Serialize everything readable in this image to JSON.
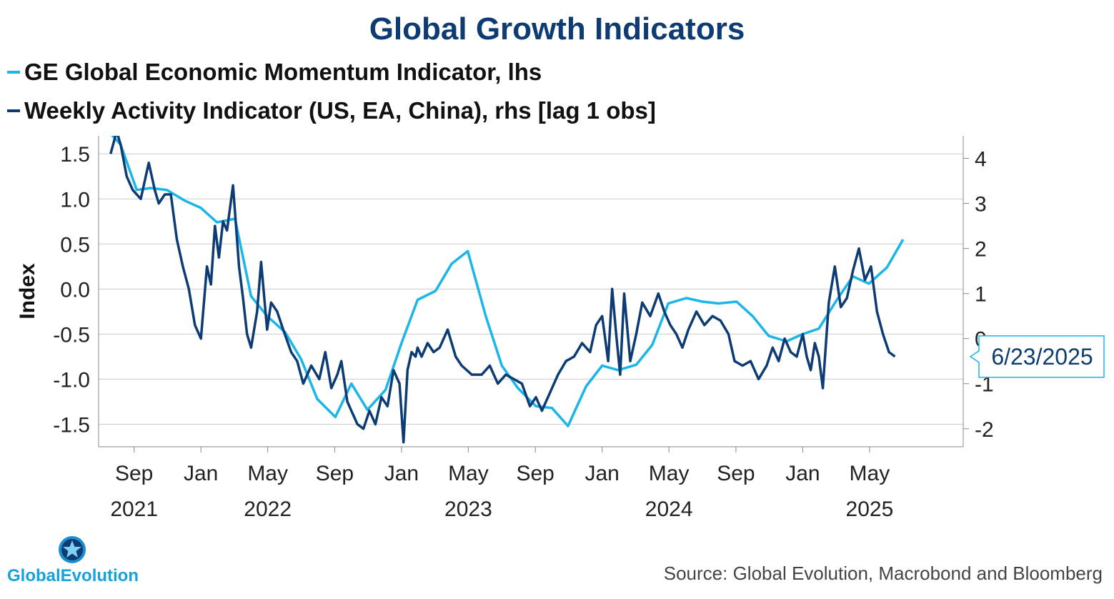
{
  "header": {
    "title": "Global Growth Indicators",
    "legend": [
      {
        "label": "GE Global Economic Momentum Indicator, lhs",
        "color": "#1ab6ea"
      },
      {
        "label": "Weekly Activity Indicator (US, EA, China), rhs [lag 1 obs]",
        "color": "#0d3b73"
      }
    ]
  },
  "footer": {
    "source": "Source: Global Evolution, Macrobond and Bloomberg",
    "logo_text": "GlobalEvolution"
  },
  "colors": {
    "momentum": "#1ab6ea",
    "weekly": "#0d3b73",
    "grid": "#cccccc",
    "callout_border": "#1ab6ea"
  },
  "chart_data": {
    "type": "line",
    "title": "Global Growth Indicators",
    "ylabel": "Index",
    "xlabel": "",
    "x_range": [
      2021.49,
      2025.8
    ],
    "left_axis": {
      "ylim": [
        -1.75,
        1.7
      ],
      "ticks": [
        1.5,
        1.0,
        0.5,
        0.0,
        -0.5,
        -1.0,
        -1.5
      ],
      "tick_labels": [
        "1.5",
        "1.0",
        "0.5",
        "0.0",
        "-0.5",
        "-1.0",
        "-1.5"
      ]
    },
    "right_axis": {
      "ylim": [
        -2.4,
        4.5
      ],
      "ticks": [
        4,
        3,
        2,
        1,
        0,
        -1,
        -2
      ],
      "tick_labels": [
        "4",
        "3",
        "2",
        "1",
        "0",
        "-1",
        "-2"
      ]
    },
    "x_ticks": [
      {
        "pos": 2021.667,
        "month": "Sep",
        "year": "2021"
      },
      {
        "pos": 2022.0,
        "month": "Jan",
        "year": ""
      },
      {
        "pos": 2022.333,
        "month": "May",
        "year": "2022"
      },
      {
        "pos": 2022.667,
        "month": "Sep",
        "year": ""
      },
      {
        "pos": 2023.0,
        "month": "Jan",
        "year": ""
      },
      {
        "pos": 2023.333,
        "month": "May",
        "year": "2023"
      },
      {
        "pos": 2023.667,
        "month": "Sep",
        "year": ""
      },
      {
        "pos": 2024.0,
        "month": "Jan",
        "year": ""
      },
      {
        "pos": 2024.333,
        "month": "May",
        "year": "2024"
      },
      {
        "pos": 2024.667,
        "month": "Sep",
        "year": ""
      },
      {
        "pos": 2025.0,
        "month": "Jan",
        "year": ""
      },
      {
        "pos": 2025.333,
        "month": "May",
        "year": "2025"
      }
    ],
    "callout": {
      "label": "6/23/2025",
      "value_rhs": -0.4
    },
    "series": [
      {
        "name": "GE Global Economic Momentum Indicator, lhs",
        "axis": "left",
        "x": [
          2021.54,
          2021.6,
          2021.68,
          2021.75,
          2021.83,
          2021.92,
          2022.0,
          2022.08,
          2022.17,
          2022.25,
          2022.33,
          2022.42,
          2022.5,
          2022.58,
          2022.67,
          2022.75,
          2022.83,
          2022.92,
          2023.0,
          2023.08,
          2023.17,
          2023.25,
          2023.33,
          2023.42,
          2023.5,
          2023.58,
          2023.67,
          2023.75,
          2023.83,
          2023.92,
          2024.0,
          2024.08,
          2024.17,
          2024.25,
          2024.33,
          2024.42,
          2024.5,
          2024.58,
          2024.67,
          2024.75,
          2024.83,
          2024.92,
          2025.0,
          2025.08,
          2025.17,
          2025.25,
          2025.33,
          2025.42,
          2025.5
        ],
        "y": [
          1.75,
          1.6,
          1.1,
          1.12,
          1.1,
          0.98,
          0.9,
          0.74,
          0.78,
          -0.08,
          -0.3,
          -0.48,
          -0.78,
          -1.22,
          -1.42,
          -1.05,
          -1.34,
          -1.12,
          -0.6,
          -0.12,
          -0.02,
          0.28,
          0.42,
          -0.3,
          -0.85,
          -1.1,
          -1.3,
          -1.32,
          -1.52,
          -1.08,
          -0.85,
          -0.9,
          -0.84,
          -0.62,
          -0.16,
          -0.1,
          -0.14,
          -0.16,
          -0.14,
          -0.3,
          -0.52,
          -0.58,
          -0.5,
          -0.44,
          -0.12,
          0.14,
          0.06,
          0.24,
          0.55
        ]
      },
      {
        "name": "Weekly Activity Indicator (US, EA, China), rhs [lag 1 obs]",
        "axis": "right",
        "x": [
          2021.55,
          2021.58,
          2021.6,
          2021.63,
          2021.66,
          2021.7,
          2021.74,
          2021.77,
          2021.79,
          2021.82,
          2021.85,
          2021.88,
          2021.91,
          2021.94,
          2021.97,
          2022.0,
          2022.03,
          2022.05,
          2022.07,
          2022.09,
          2022.11,
          2022.13,
          2022.16,
          2022.19,
          2022.21,
          2022.23,
          2022.25,
          2022.28,
          2022.3,
          2022.33,
          2022.35,
          2022.38,
          2022.41,
          2022.45,
          2022.48,
          2022.51,
          2022.55,
          2022.59,
          2022.62,
          2022.65,
          2022.68,
          2022.7,
          2022.73,
          2022.75,
          2022.78,
          2022.81,
          2022.84,
          2022.87,
          2022.9,
          2022.93,
          2022.96,
          2022.99,
          2023.01,
          2023.03,
          2023.05,
          2023.07,
          2023.08,
          2023.1,
          2023.13,
          2023.16,
          2023.19,
          2023.23,
          2023.27,
          2023.3,
          2023.35,
          2023.4,
          2023.44,
          2023.48,
          2023.52,
          2023.56,
          2023.6,
          2023.64,
          2023.67,
          2023.7,
          2023.74,
          2023.78,
          2023.82,
          2023.86,
          2023.9,
          2023.94,
          2023.97,
          2024.0,
          2024.03,
          2024.05,
          2024.07,
          2024.09,
          2024.11,
          2024.14,
          2024.17,
          2024.2,
          2024.24,
          2024.28,
          2024.31,
          2024.34,
          2024.37,
          2024.4,
          2024.43,
          2024.47,
          2024.51,
          2024.55,
          2024.59,
          2024.63,
          2024.66,
          2024.7,
          2024.74,
          2024.78,
          2024.82,
          2024.85,
          2024.88,
          2024.91,
          2024.94,
          2024.97,
          2025.0,
          2025.02,
          2025.04,
          2025.06,
          2025.08,
          2025.1,
          2025.13,
          2025.16,
          2025.19,
          2025.22,
          2025.25,
          2025.28,
          2025.31,
          2025.34,
          2025.37,
          2025.4,
          2025.43,
          2025.46
        ],
        "y": [
          4.1,
          4.6,
          4.3,
          3.6,
          3.3,
          3.1,
          3.9,
          3.3,
          3.0,
          3.2,
          3.2,
          2.2,
          1.6,
          1.1,
          0.3,
          0.0,
          1.6,
          1.2,
          2.5,
          1.8,
          2.6,
          2.4,
          3.4,
          1.6,
          0.9,
          0.1,
          -0.2,
          0.6,
          1.7,
          0.2,
          0.8,
          0.6,
          0.2,
          -0.3,
          -0.5,
          -1.0,
          -0.6,
          -0.9,
          -0.3,
          -1.1,
          -0.8,
          -0.5,
          -1.4,
          -1.6,
          -1.9,
          -2.0,
          -1.6,
          -1.9,
          -1.3,
          -1.5,
          -0.7,
          -1.0,
          -2.3,
          -0.7,
          -0.3,
          -0.4,
          -0.2,
          -0.4,
          -0.1,
          -0.3,
          -0.2,
          0.2,
          -0.4,
          -0.6,
          -0.8,
          -0.8,
          -0.6,
          -1.0,
          -0.8,
          -0.9,
          -1.0,
          -1.5,
          -1.3,
          -1.6,
          -1.2,
          -0.8,
          -0.5,
          -0.4,
          -0.1,
          -0.3,
          0.3,
          0.5,
          -0.5,
          1.1,
          0.1,
          -0.8,
          1.0,
          -0.5,
          0.1,
          0.8,
          0.5,
          1.0,
          0.6,
          0.3,
          0.1,
          -0.2,
          0.2,
          0.6,
          0.3,
          0.5,
          0.4,
          0.1,
          -0.5,
          -0.6,
          -0.5,
          -0.9,
          -0.6,
          -0.2,
          -0.5,
          0.0,
          -0.3,
          -0.4,
          0.1,
          -0.4,
          -0.7,
          -0.1,
          -0.4,
          -1.1,
          0.8,
          1.6,
          0.7,
          0.9,
          1.5,
          2.0,
          1.3,
          1.6,
          0.6,
          0.1,
          -0.3,
          -0.4
        ]
      }
    ]
  }
}
